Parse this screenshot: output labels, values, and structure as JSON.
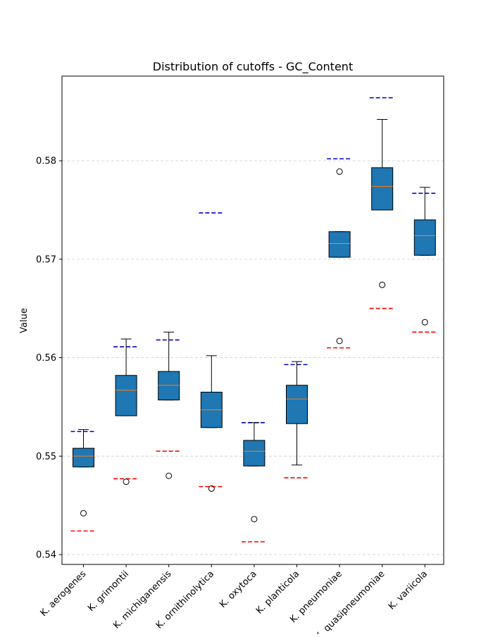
{
  "chart_data": {
    "type": "box",
    "title": "Distribution of cutoffs - GC_Content",
    "xlabel": "",
    "ylabel": "Value",
    "ylim": [
      0.539,
      0.5886
    ],
    "yticks": [
      0.54,
      0.55,
      0.56,
      0.57,
      0.58
    ],
    "ytick_labels": [
      "0.54",
      "0.55",
      "0.56",
      "0.57",
      "0.58"
    ],
    "grid": "y-dashed",
    "box_color": "#1f77b4",
    "median_color": "#ff7f0e",
    "upper_cutoff_color": "#0000cc",
    "lower_cutoff_color": "#ff0000",
    "categories": [
      "K. aerogenes",
      "K. grimontii",
      "K. michiganensis",
      "K. ornithinolytica",
      "K. oxytoca",
      "K. planticola",
      "K. pneumoniae",
      "K. quasipneumoniae",
      "K. variicola"
    ],
    "boxes": [
      {
        "whislo": 0.5489,
        "q1": 0.5489,
        "med": 0.55,
        "q3": 0.5508,
        "whishi": 0.5527,
        "fliers": [
          0.5442
        ],
        "upper_cutoff": 0.5525,
        "lower_cutoff": 0.5424
      },
      {
        "whislo": 0.5541,
        "q1": 0.5541,
        "med": 0.5567,
        "q3": 0.5582,
        "whishi": 0.5619,
        "fliers": [
          0.5474
        ],
        "upper_cutoff": 0.5611,
        "lower_cutoff": 0.5477
      },
      {
        "whislo": 0.5557,
        "q1": 0.5557,
        "med": 0.5572,
        "q3": 0.5586,
        "whishi": 0.5626,
        "fliers": [
          0.548
        ],
        "upper_cutoff": 0.5618,
        "lower_cutoff": 0.5505
      },
      {
        "whislo": 0.5529,
        "q1": 0.5529,
        "med": 0.5547,
        "q3": 0.5565,
        "whishi": 0.5602,
        "fliers": [
          0.5467
        ],
        "upper_cutoff": 0.5747,
        "lower_cutoff": 0.5469
      },
      {
        "whislo": 0.549,
        "q1": 0.549,
        "med": 0.5505,
        "q3": 0.5516,
        "whishi": 0.5534,
        "fliers": [
          0.5436
        ],
        "upper_cutoff": 0.5534,
        "lower_cutoff": 0.5413
      },
      {
        "whislo": 0.5491,
        "q1": 0.5533,
        "med": 0.5558,
        "q3": 0.5572,
        "whishi": 0.5596,
        "fliers": [],
        "upper_cutoff": 0.5593,
        "lower_cutoff": 0.5478
      },
      {
        "whislo": 0.5702,
        "q1": 0.5702,
        "med": 0.5716,
        "q3": 0.5728,
        "whishi": 0.5728,
        "fliers": [
          0.5789,
          0.5617
        ],
        "upper_cutoff": 0.5802,
        "lower_cutoff": 0.561
      },
      {
        "whislo": 0.575,
        "q1": 0.575,
        "med": 0.5774,
        "q3": 0.5793,
        "whishi": 0.5842,
        "fliers": [
          0.5674
        ],
        "upper_cutoff": 0.5864,
        "lower_cutoff": 0.565
      },
      {
        "whislo": 0.5704,
        "q1": 0.5704,
        "med": 0.5724,
        "q3": 0.574,
        "whishi": 0.5773,
        "fliers": [
          0.5636
        ],
        "upper_cutoff": 0.5767,
        "lower_cutoff": 0.5626
      }
    ]
  }
}
